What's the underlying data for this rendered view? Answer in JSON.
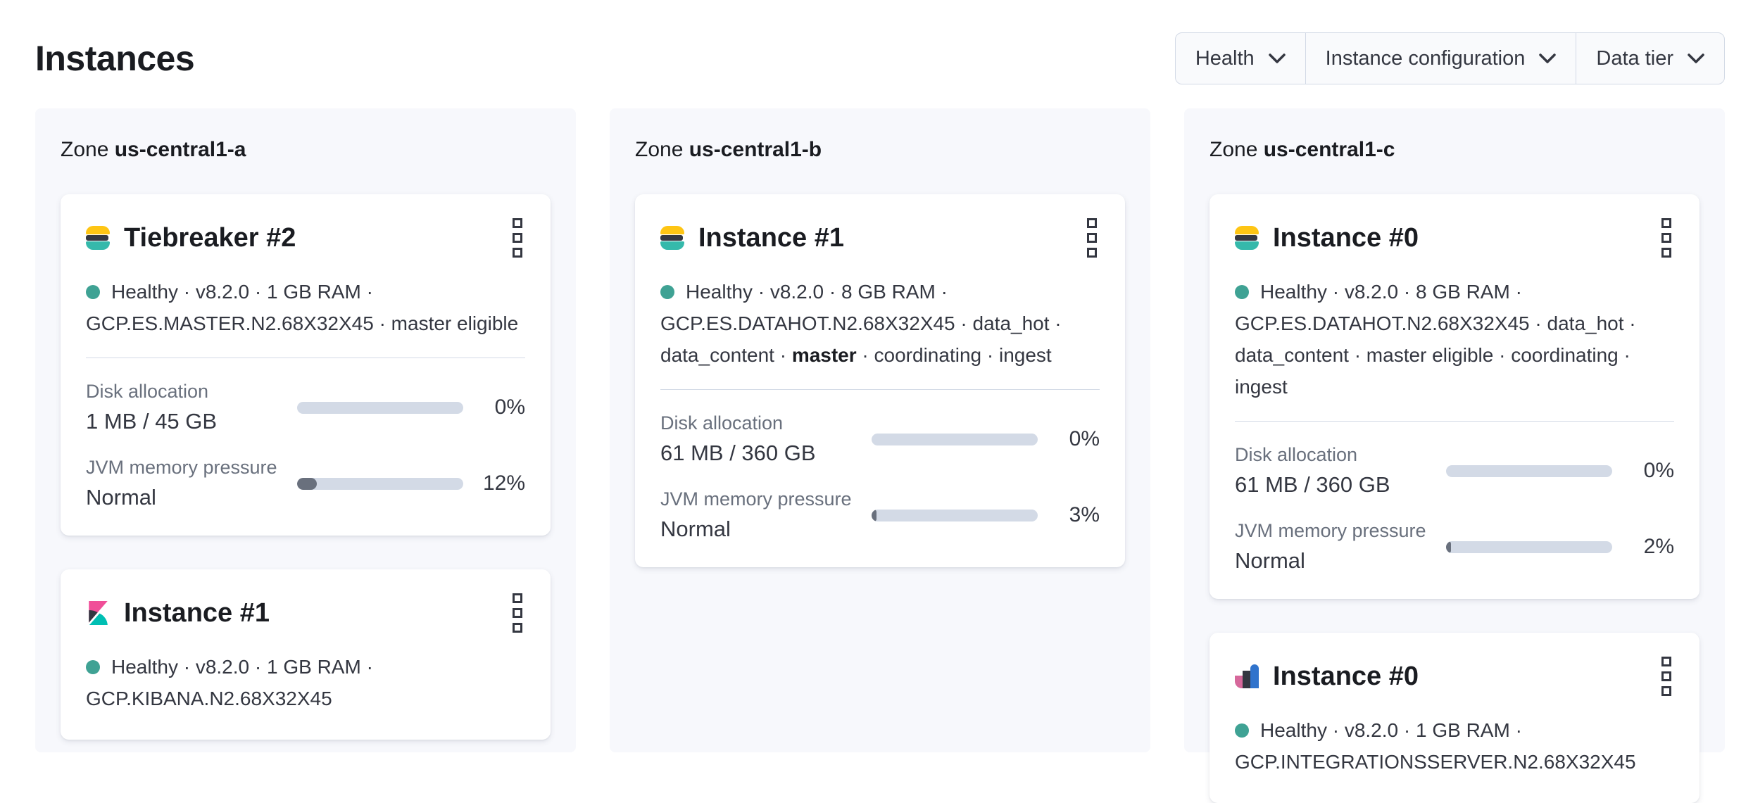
{
  "page": {
    "title": "Instances"
  },
  "filters": [
    {
      "label": "Health"
    },
    {
      "label": "Instance configuration"
    },
    {
      "label": "Data tier"
    }
  ],
  "colors": {
    "healthy_dot": "#3fa294",
    "bar_track": "#d3dae6",
    "bar_fill": "#69707d",
    "zone_panel_bg": "#f7f8fc",
    "es_logo_yellow": "#fec514",
    "es_logo_dark": "#343741",
    "es_logo_teal": "#35b9ab",
    "kibana_pink": "#f04e98",
    "kibana_dark": "#343741",
    "kibana_teal": "#00bfb3",
    "integrations_pink": "#d6689b",
    "integrations_dark": "#343741",
    "integrations_blue": "#3073cc"
  },
  "icons": [
    "elasticsearch-logo",
    "kibana-logo",
    "integrations-server-logo",
    "kebab-menu-icon",
    "chevron-down-icon",
    "health-status-dot"
  ],
  "zones": [
    {
      "prefix": "Zone",
      "name": "us-central1-a",
      "instances": [
        {
          "icon": "elasticsearch-logo",
          "title": "Tiebreaker #2",
          "line1": "Healthy · v8.2.0 · 1 GB RAM ·",
          "line2": "GCP.ES.MASTER.N2.68X32X45 · master eligible",
          "disk": {
            "label": "Disk allocation",
            "value": "1 MB / 45 GB",
            "percent_label": "0%",
            "percent": 0
          },
          "jvm": {
            "label": "JVM memory pressure",
            "value": "Normal",
            "percent_label": "12%",
            "percent": 12
          }
        },
        {
          "icon": "kibana-logo",
          "title": "Instance #1",
          "line1": "Healthy · v8.2.0 · 1 GB RAM ·",
          "line2": "GCP.KIBANA.N2.68X32X45"
        }
      ]
    },
    {
      "prefix": "Zone",
      "name": "us-central1-b",
      "instances": [
        {
          "icon": "elasticsearch-logo",
          "title": "Instance #1",
          "line1": "Healthy · v8.2.0 · 8 GB RAM ·",
          "line2": "GCP.ES.DATAHOT.N2.68X32X45 · data_hot ·",
          "line3_pre": "data_content · ",
          "line3_bold": "master",
          "line3_post": " · coordinating · ingest",
          "disk": {
            "label": "Disk allocation",
            "value": "61 MB / 360 GB",
            "percent_label": "0%",
            "percent": 0
          },
          "jvm": {
            "label": "JVM memory pressure",
            "value": "Normal",
            "percent_label": "3%",
            "percent": 3
          }
        }
      ]
    },
    {
      "prefix": "Zone",
      "name": "us-central1-c",
      "instances": [
        {
          "icon": "elasticsearch-logo",
          "title": "Instance #0",
          "line1": "Healthy · v8.2.0 · 8 GB RAM ·",
          "line2": "GCP.ES.DATAHOT.N2.68X32X45 · data_hot ·",
          "line3_pre": "data_content · master eligible · coordinating · ingest",
          "line3_bold": "",
          "line3_post": "",
          "disk": {
            "label": "Disk allocation",
            "value": "61 MB / 360 GB",
            "percent_label": "0%",
            "percent": 0
          },
          "jvm": {
            "label": "JVM memory pressure",
            "value": "Normal",
            "percent_label": "2%",
            "percent": 2
          }
        },
        {
          "icon": "integrations-server-logo",
          "title": "Instance #0",
          "line1": "Healthy · v8.2.0 · 1 GB RAM ·",
          "line2": "GCP.INTEGRATIONSSERVER.N2.68X32X45"
        }
      ]
    }
  ]
}
